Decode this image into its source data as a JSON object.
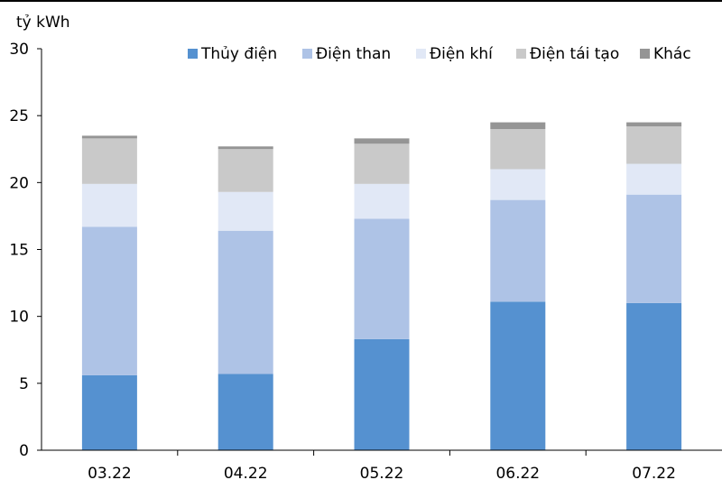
{
  "chart_data": {
    "type": "bar",
    "stacked": true,
    "title": "",
    "ylabel": "tỷ kWh",
    "xlabel": "",
    "ylim": [
      0,
      30
    ],
    "yticks": [
      0,
      5,
      10,
      15,
      20,
      25,
      30
    ],
    "grid": false,
    "legend_position": "top-right",
    "categories": [
      "03.22",
      "04.22",
      "05.22",
      "06.22",
      "07.22"
    ],
    "series": [
      {
        "name": "Thủy điện",
        "color": "#5591D0",
        "values": [
          5.6,
          5.7,
          8.3,
          11.1,
          11.0
        ]
      },
      {
        "name": "Điện than",
        "color": "#AEC3E6",
        "values": [
          11.1,
          10.7,
          9.0,
          7.6,
          8.1
        ]
      },
      {
        "name": "Điện khí",
        "color": "#E1E8F6",
        "values": [
          3.2,
          2.9,
          2.6,
          2.3,
          2.3
        ]
      },
      {
        "name": "Điện tái tạo",
        "color": "#C9C9C9",
        "values": [
          3.4,
          3.2,
          3.0,
          3.0,
          2.8
        ]
      },
      {
        "name": "Khác",
        "color": "#959595",
        "values": [
          0.2,
          0.2,
          0.4,
          0.5,
          0.3
        ]
      }
    ]
  }
}
